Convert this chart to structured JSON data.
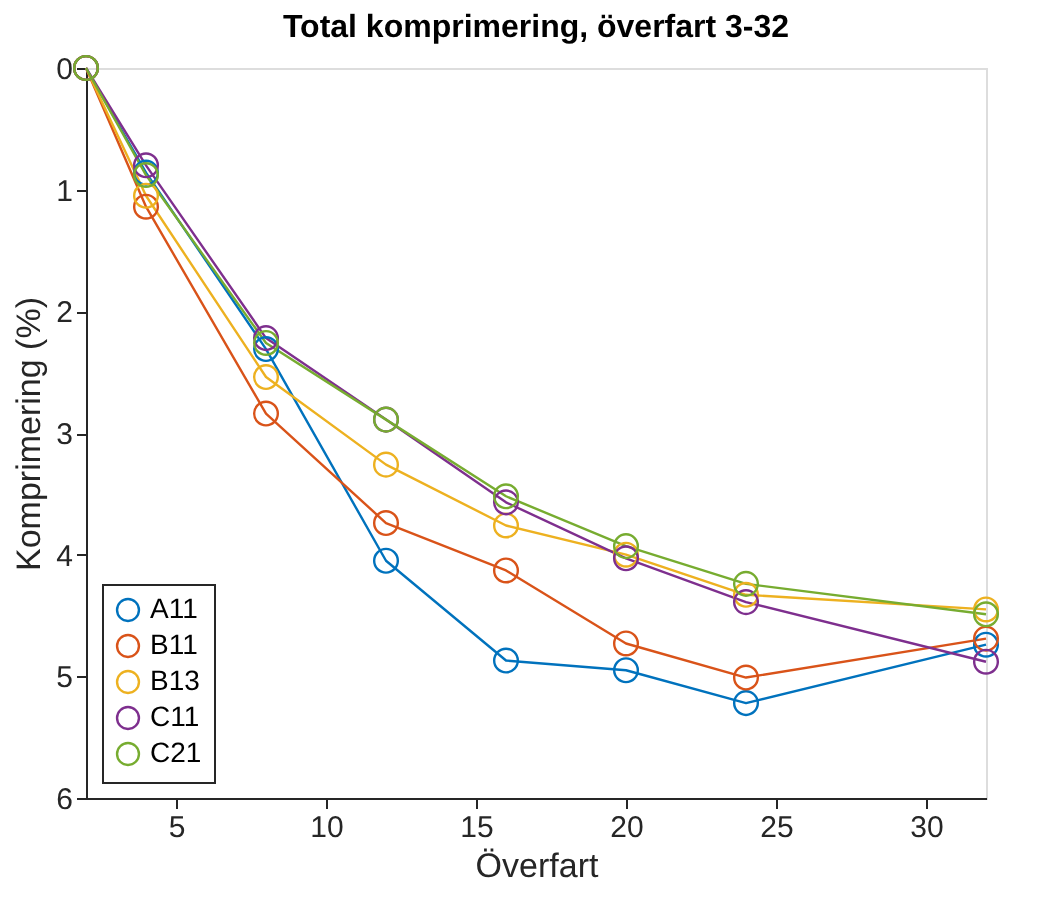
{
  "chart_data": {
    "type": "line",
    "title": "Total komprimering, överfart 3-32",
    "xlabel": "Överfart",
    "ylabel": "Komprimering (%)",
    "x": [
      2,
      4,
      8,
      12,
      16,
      20,
      24,
      32
    ],
    "series": [
      {
        "name": "A11",
        "color": "#0072bd",
        "values": [
          0,
          0.86,
          2.31,
          4.05,
          4.87,
          4.95,
          5.22,
          4.74
        ]
      },
      {
        "name": "B11",
        "color": "#d95319",
        "values": [
          0,
          1.14,
          2.84,
          3.74,
          4.13,
          4.73,
          5.01,
          4.69
        ]
      },
      {
        "name": "B13",
        "color": "#edb120",
        "values": [
          0,
          1.05,
          2.54,
          3.26,
          3.76,
          4.0,
          4.33,
          4.45
        ]
      },
      {
        "name": "C11",
        "color": "#7e2f8e",
        "values": [
          0,
          0.8,
          2.22,
          2.89,
          3.57,
          4.03,
          4.39,
          4.88
        ]
      },
      {
        "name": "C21",
        "color": "#77ac30",
        "values": [
          0,
          0.88,
          2.26,
          2.89,
          3.52,
          3.93,
          4.24,
          4.49
        ]
      }
    ],
    "xlim": [
      2,
      32
    ],
    "xticks": [
      5,
      10,
      15,
      20,
      25,
      30
    ],
    "ylim": [
      6,
      0
    ],
    "yticks": [
      0,
      1,
      2,
      3,
      4,
      5,
      6
    ],
    "grid": false,
    "legend": "bottom left",
    "marker": "circle",
    "line_style": "solid"
  }
}
